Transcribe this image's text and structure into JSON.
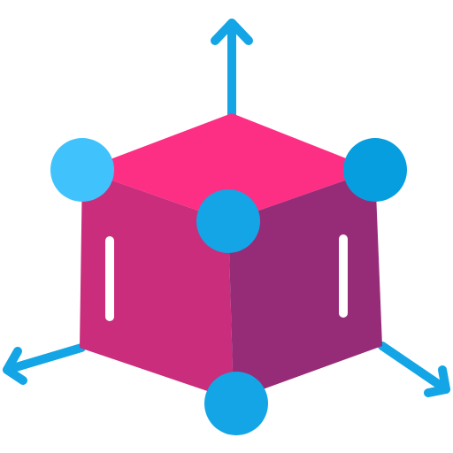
{
  "icon": {
    "name": "3d-cube-axes-icon",
    "colors": {
      "background": "#ffffff",
      "top_face": "#fd2f84",
      "left_face": "#ca2d7c",
      "right_face": "#962b78",
      "axis_arrow": "#13a5e5",
      "vertex_light": "#40c3fc",
      "vertex_mid": "#13a5e5",
      "vertex_dark": "#069ede",
      "edge_marks": "#ffffff"
    },
    "parts": {
      "arrows": [
        "up-arrow-icon",
        "left-arrow-icon",
        "right-arrow-icon"
      ],
      "faces": [
        "top-face",
        "left-face",
        "right-face"
      ],
      "vertices": [
        "top-left-vertex",
        "top-right-vertex",
        "center-vertex",
        "bottom-vertex"
      ],
      "marks": [
        "left-face-mark",
        "right-face-mark"
      ]
    }
  }
}
